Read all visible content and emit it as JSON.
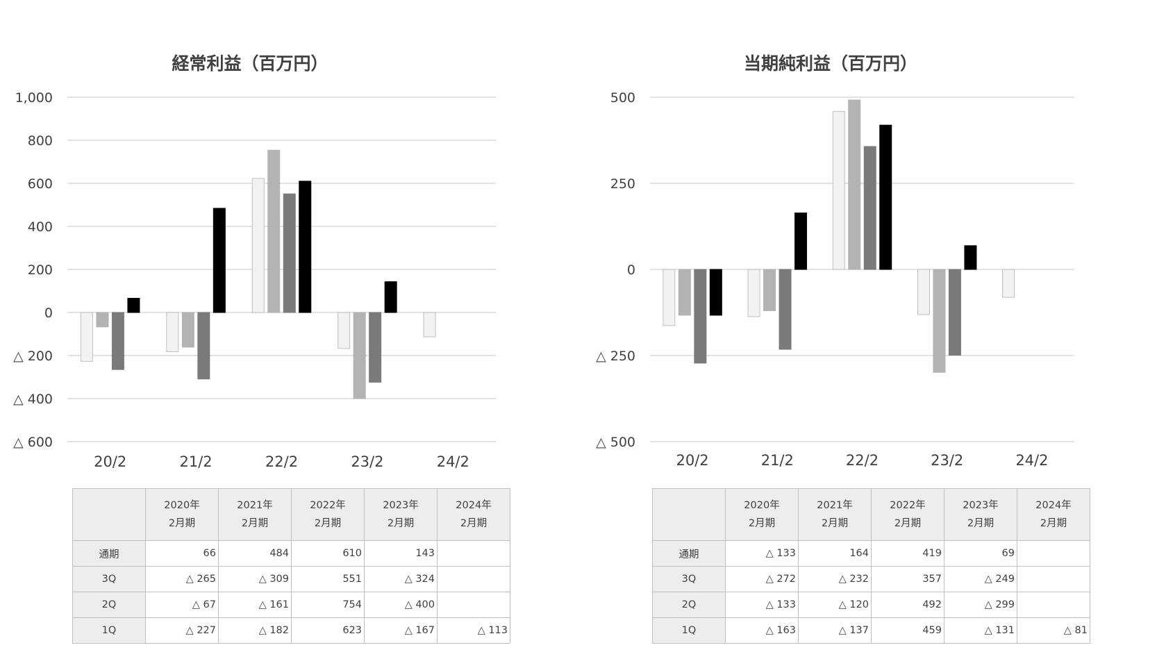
{
  "colors": {
    "1Q": "#f2f2f2",
    "2Q": "#b3b3b3",
    "3Q": "#7a7a7a",
    "通期": "#000000",
    "grid": "#d9d9d9",
    "text": "#404040"
  },
  "table_headers": [
    [
      "2020年",
      "2月期"
    ],
    [
      "2021年",
      "2月期"
    ],
    [
      "2022年",
      "2月期"
    ],
    [
      "2023年",
      "2月期"
    ],
    [
      "2024年",
      "2月期"
    ]
  ],
  "chart_data": [
    {
      "type": "bar",
      "title": "経常利益（百万円）",
      "categories": [
        "20/2",
        "21/2",
        "22/2",
        "23/2",
        "24/2"
      ],
      "ylim": [
        -600,
        1000
      ],
      "yticks": [
        1000,
        800,
        600,
        400,
        200,
        0,
        -200,
        -400,
        -600
      ],
      "ytick_labels": [
        "1,000",
        "800",
        "600",
        "400",
        "200",
        "0",
        "△ 200",
        "△ 400",
        "△ 600"
      ],
      "grid": true,
      "series": [
        {
          "name": "1Q",
          "values": [
            -227,
            -182,
            623,
            -167,
            -113
          ]
        },
        {
          "name": "2Q",
          "values": [
            -67,
            -161,
            754,
            -400,
            null
          ]
        },
        {
          "name": "3Q",
          "values": [
            -265,
            -309,
            551,
            -324,
            null
          ]
        },
        {
          "name": "通期",
          "values": [
            66,
            484,
            610,
            143,
            null
          ]
        }
      ],
      "table_rows": [
        {
          "label": "通期",
          "cells": [
            "66",
            "484",
            "610",
            "143",
            ""
          ]
        },
        {
          "label": "3Q",
          "cells": [
            "△ 265",
            "△ 309",
            "551",
            "△ 324",
            ""
          ]
        },
        {
          "label": "2Q",
          "cells": [
            "△ 67",
            "△ 161",
            "754",
            "△ 400",
            ""
          ]
        },
        {
          "label": "1Q",
          "cells": [
            "△ 227",
            "△ 182",
            "623",
            "△ 167",
            "△ 113"
          ]
        }
      ]
    },
    {
      "type": "bar",
      "title": "当期純利益（百万円）",
      "categories": [
        "20/2",
        "21/2",
        "22/2",
        "23/2",
        "24/2"
      ],
      "ylim": [
        -500,
        500
      ],
      "yticks": [
        500,
        250,
        0,
        -250,
        -500
      ],
      "ytick_labels": [
        "500",
        "250",
        "0",
        "△ 250",
        "△ 500"
      ],
      "grid": true,
      "series": [
        {
          "name": "1Q",
          "values": [
            -163,
            -137,
            459,
            -131,
            -81
          ]
        },
        {
          "name": "2Q",
          "values": [
            -133,
            -120,
            492,
            -299,
            null
          ]
        },
        {
          "name": "3Q",
          "values": [
            -272,
            -232,
            357,
            -249,
            null
          ]
        },
        {
          "name": "通期",
          "values": [
            -133,
            164,
            419,
            69,
            null
          ]
        }
      ],
      "table_rows": [
        {
          "label": "通期",
          "cells": [
            "△ 133",
            "164",
            "419",
            "69",
            ""
          ]
        },
        {
          "label": "3Q",
          "cells": [
            "△ 272",
            "△ 232",
            "357",
            "△ 249",
            ""
          ]
        },
        {
          "label": "2Q",
          "cells": [
            "△ 133",
            "△ 120",
            "492",
            "△ 299",
            ""
          ]
        },
        {
          "label": "1Q",
          "cells": [
            "△ 163",
            "△ 137",
            "459",
            "△ 131",
            "△ 81"
          ]
        }
      ]
    }
  ]
}
